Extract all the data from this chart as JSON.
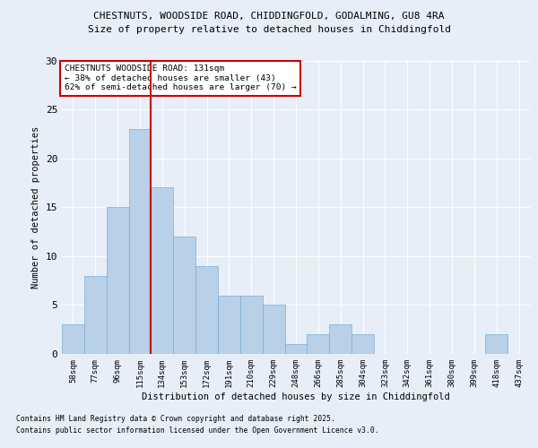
{
  "title1": "CHESTNUTS, WOODSIDE ROAD, CHIDDINGFOLD, GODALMING, GU8 4RA",
  "title2": "Size of property relative to detached houses in Chiddingfold",
  "xlabel": "Distribution of detached houses by size in Chiddingfold",
  "ylabel": "Number of detached properties",
  "bin_labels": [
    "58sqm",
    "77sqm",
    "96sqm",
    "115sqm",
    "134sqm",
    "153sqm",
    "172sqm",
    "191sqm",
    "210sqm",
    "229sqm",
    "248sqm",
    "266sqm",
    "285sqm",
    "304sqm",
    "323sqm",
    "342sqm",
    "361sqm",
    "380sqm",
    "399sqm",
    "418sqm",
    "437sqm"
  ],
  "bar_values": [
    3,
    8,
    15,
    23,
    17,
    12,
    9,
    6,
    6,
    5,
    1,
    2,
    3,
    2,
    0,
    0,
    0,
    0,
    0,
    2,
    0
  ],
  "bar_color": "#b8d0e8",
  "bar_edge_color": "#7aafd4",
  "vline_color": "#cc0000",
  "annotation_title": "CHESTNUTS WOODSIDE ROAD: 131sqm",
  "annotation_line2": "← 38% of detached houses are smaller (43)",
  "annotation_line3": "62% of semi-detached houses are larger (70) →",
  "annotation_box_edge": "#cc0000",
  "ylim": [
    0,
    30
  ],
  "yticks": [
    0,
    5,
    10,
    15,
    20,
    25,
    30
  ],
  "footer1": "Contains HM Land Registry data © Crown copyright and database right 2025.",
  "footer2": "Contains public sector information licensed under the Open Government Licence v3.0.",
  "bg_color": "#e8eef8",
  "plot_bg_color": "#e8eef8"
}
